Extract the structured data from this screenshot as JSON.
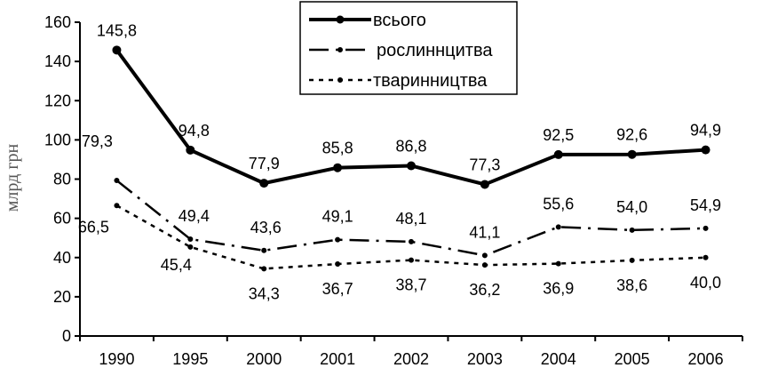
{
  "chart_data": {
    "type": "line",
    "categories": [
      "1990",
      "1995",
      "2000",
      "2001",
      "2002",
      "2003",
      "2004",
      "2005",
      "2006"
    ],
    "series": [
      {
        "name": "всього",
        "values": [
          145.8,
          94.8,
          77.9,
          85.8,
          86.8,
          77.3,
          92.5,
          92.6,
          94.9
        ],
        "labels": [
          "145,8",
          "94,8",
          "77,9",
          "85,8",
          "86,8",
          "77,3",
          "92,5",
          "92,6",
          "94,9"
        ],
        "style": "solid"
      },
      {
        "name": "рослиннцитва",
        "values": [
          79.3,
          49.4,
          43.6,
          49.1,
          48.1,
          41.1,
          55.6,
          54.0,
          54.9
        ],
        "labels": [
          "79,3",
          "49,4",
          "43,6",
          "49,1",
          "48,1",
          "41,1",
          "55,6",
          "54,0",
          "54,9"
        ],
        "style": "long-dash"
      },
      {
        "name": "тваринництва",
        "values": [
          66.5,
          45.4,
          34.3,
          36.7,
          38.7,
          36.2,
          36.9,
          38.6,
          40.0
        ],
        "labels": [
          "66,5",
          "45,4",
          "34,3",
          "36,7",
          "38,7",
          "36,2",
          "36,9",
          "38,6",
          "40,0"
        ],
        "style": "short-dash"
      }
    ],
    "ylabel": "млрд грн",
    "xlabel": "",
    "ylim": [
      0,
      160
    ],
    "yticks": [
      "0",
      "20",
      "40",
      "60",
      "80",
      "100",
      "120",
      "140",
      "160"
    ],
    "grid": false,
    "legend_position": "top-center",
    "line_color": "#000000"
  }
}
